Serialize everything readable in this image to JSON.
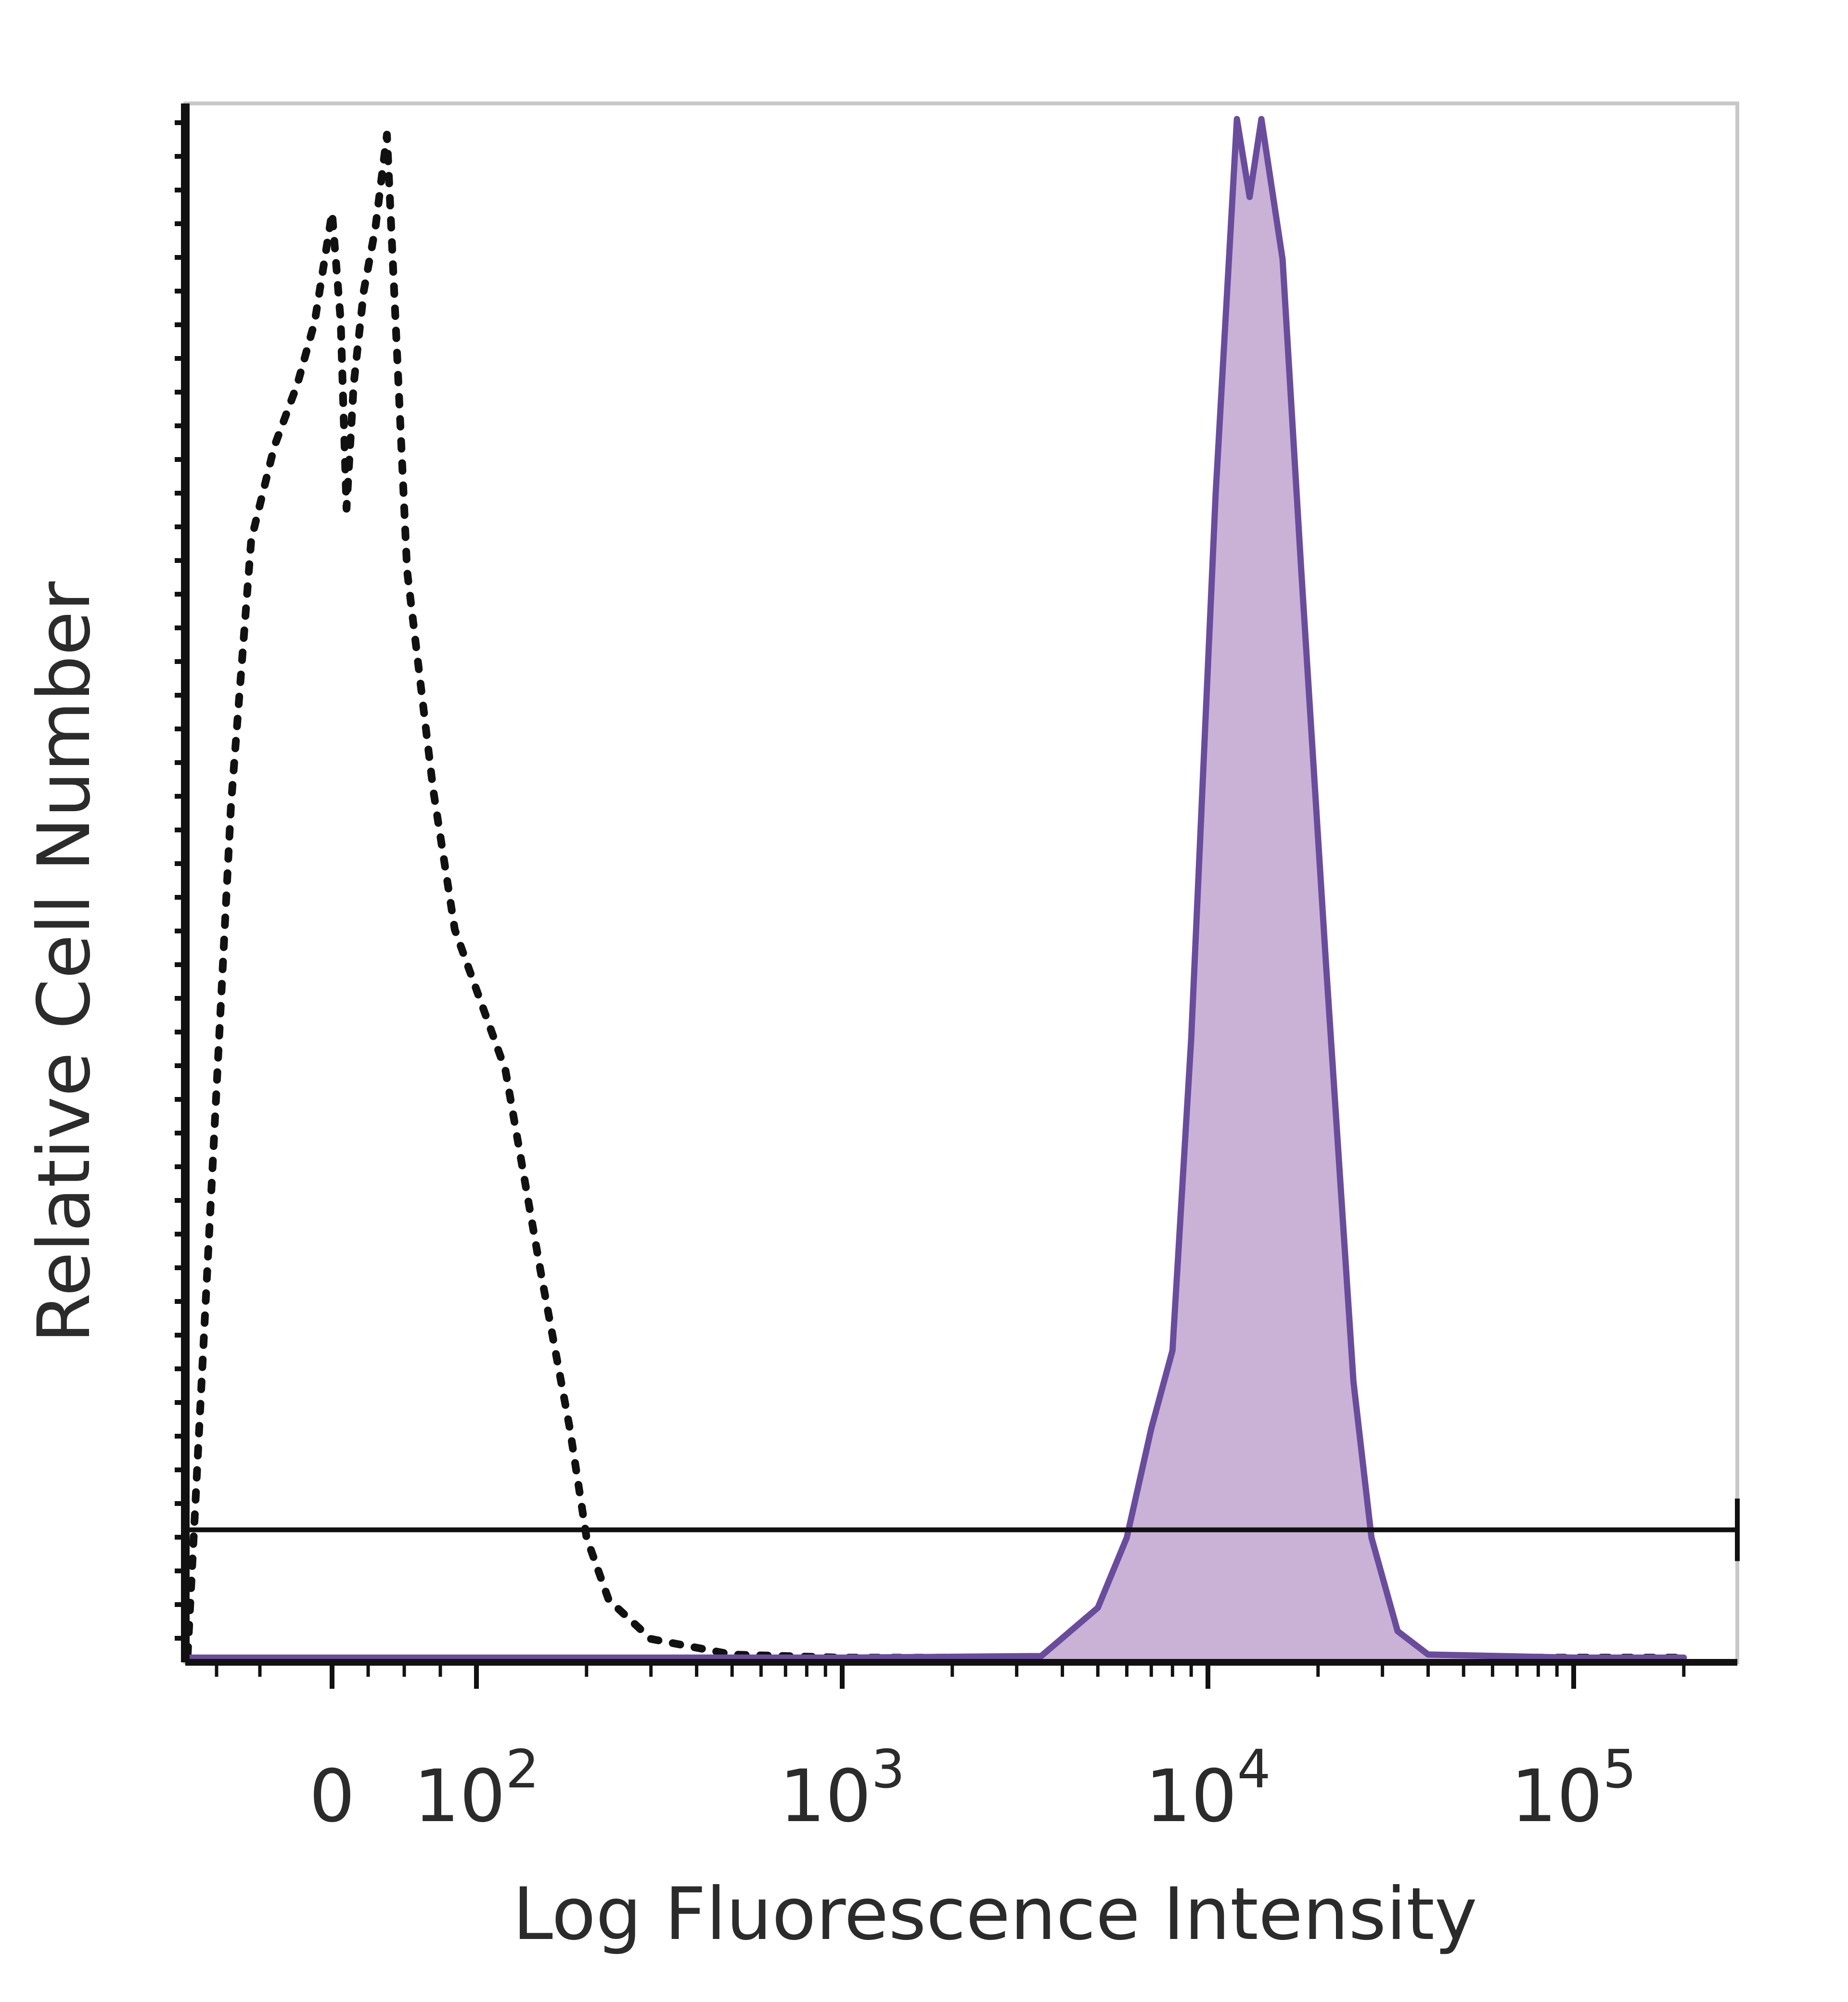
{
  "chart_data": {
    "type": "area",
    "xlabel": "Log Fluorescence Intensity",
    "ylabel": "Relative Cell Number",
    "x_scale": "biexponential",
    "x_ticks": [
      {
        "value": 0,
        "base": "0",
        "exp": ""
      },
      {
        "value": 100,
        "base": "10",
        "exp": "2"
      },
      {
        "value": 1000,
        "base": "10",
        "exp": "3"
      },
      {
        "value": 10000,
        "base": "10",
        "exp": "4"
      },
      {
        "value": 100000,
        "base": "10",
        "exp": "5"
      }
    ],
    "xlim": [
      -50,
      200000
    ],
    "ylim": [
      0,
      100
    ],
    "grid": false,
    "gate": {
      "y": 8.5
    },
    "series": [
      {
        "style": "dotted",
        "color": "#111111",
        "fill": false,
        "points": [
          [
            -50,
            0.5
          ],
          [
            -35,
            55
          ],
          [
            -28,
            72
          ],
          [
            -20,
            78
          ],
          [
            -12,
            82
          ],
          [
            -6,
            86
          ],
          [
            0,
            93
          ],
          [
            6,
            86
          ],
          [
            10,
            74
          ],
          [
            15,
            82
          ],
          [
            22,
            88
          ],
          [
            30,
            92
          ],
          [
            38,
            98
          ],
          [
            44,
            86
          ],
          [
            52,
            70
          ],
          [
            70,
            56
          ],
          [
            85,
            47
          ],
          [
            120,
            38
          ],
          [
            150,
            25
          ],
          [
            180,
            15
          ],
          [
            200,
            8
          ],
          [
            230,
            4
          ],
          [
            300,
            1.5
          ],
          [
            500,
            0.5
          ],
          [
            1000,
            0.3
          ],
          [
            10000,
            0.3
          ],
          [
            100000,
            0.3
          ],
          [
            200000,
            0.3
          ]
        ]
      },
      {
        "style": "solid",
        "color": "#6a4c9c",
        "fill": true,
        "fill_color": "#c9b2d6",
        "points": [
          [
            -50,
            0.3
          ],
          [
            100,
            0.3
          ],
          [
            1000,
            0.3
          ],
          [
            3500,
            0.4
          ],
          [
            5000,
            3.5
          ],
          [
            6000,
            8
          ],
          [
            7000,
            15
          ],
          [
            8000,
            20
          ],
          [
            9000,
            40
          ],
          [
            10500,
            75
          ],
          [
            12000,
            99
          ],
          [
            13000,
            94
          ],
          [
            14000,
            99
          ],
          [
            16000,
            90
          ],
          [
            18000,
            70
          ],
          [
            21000,
            45
          ],
          [
            25000,
            18
          ],
          [
            28000,
            8
          ],
          [
            33000,
            2
          ],
          [
            40000,
            0.5
          ],
          [
            100000,
            0.3
          ],
          [
            200000,
            0.3
          ]
        ]
      }
    ]
  }
}
